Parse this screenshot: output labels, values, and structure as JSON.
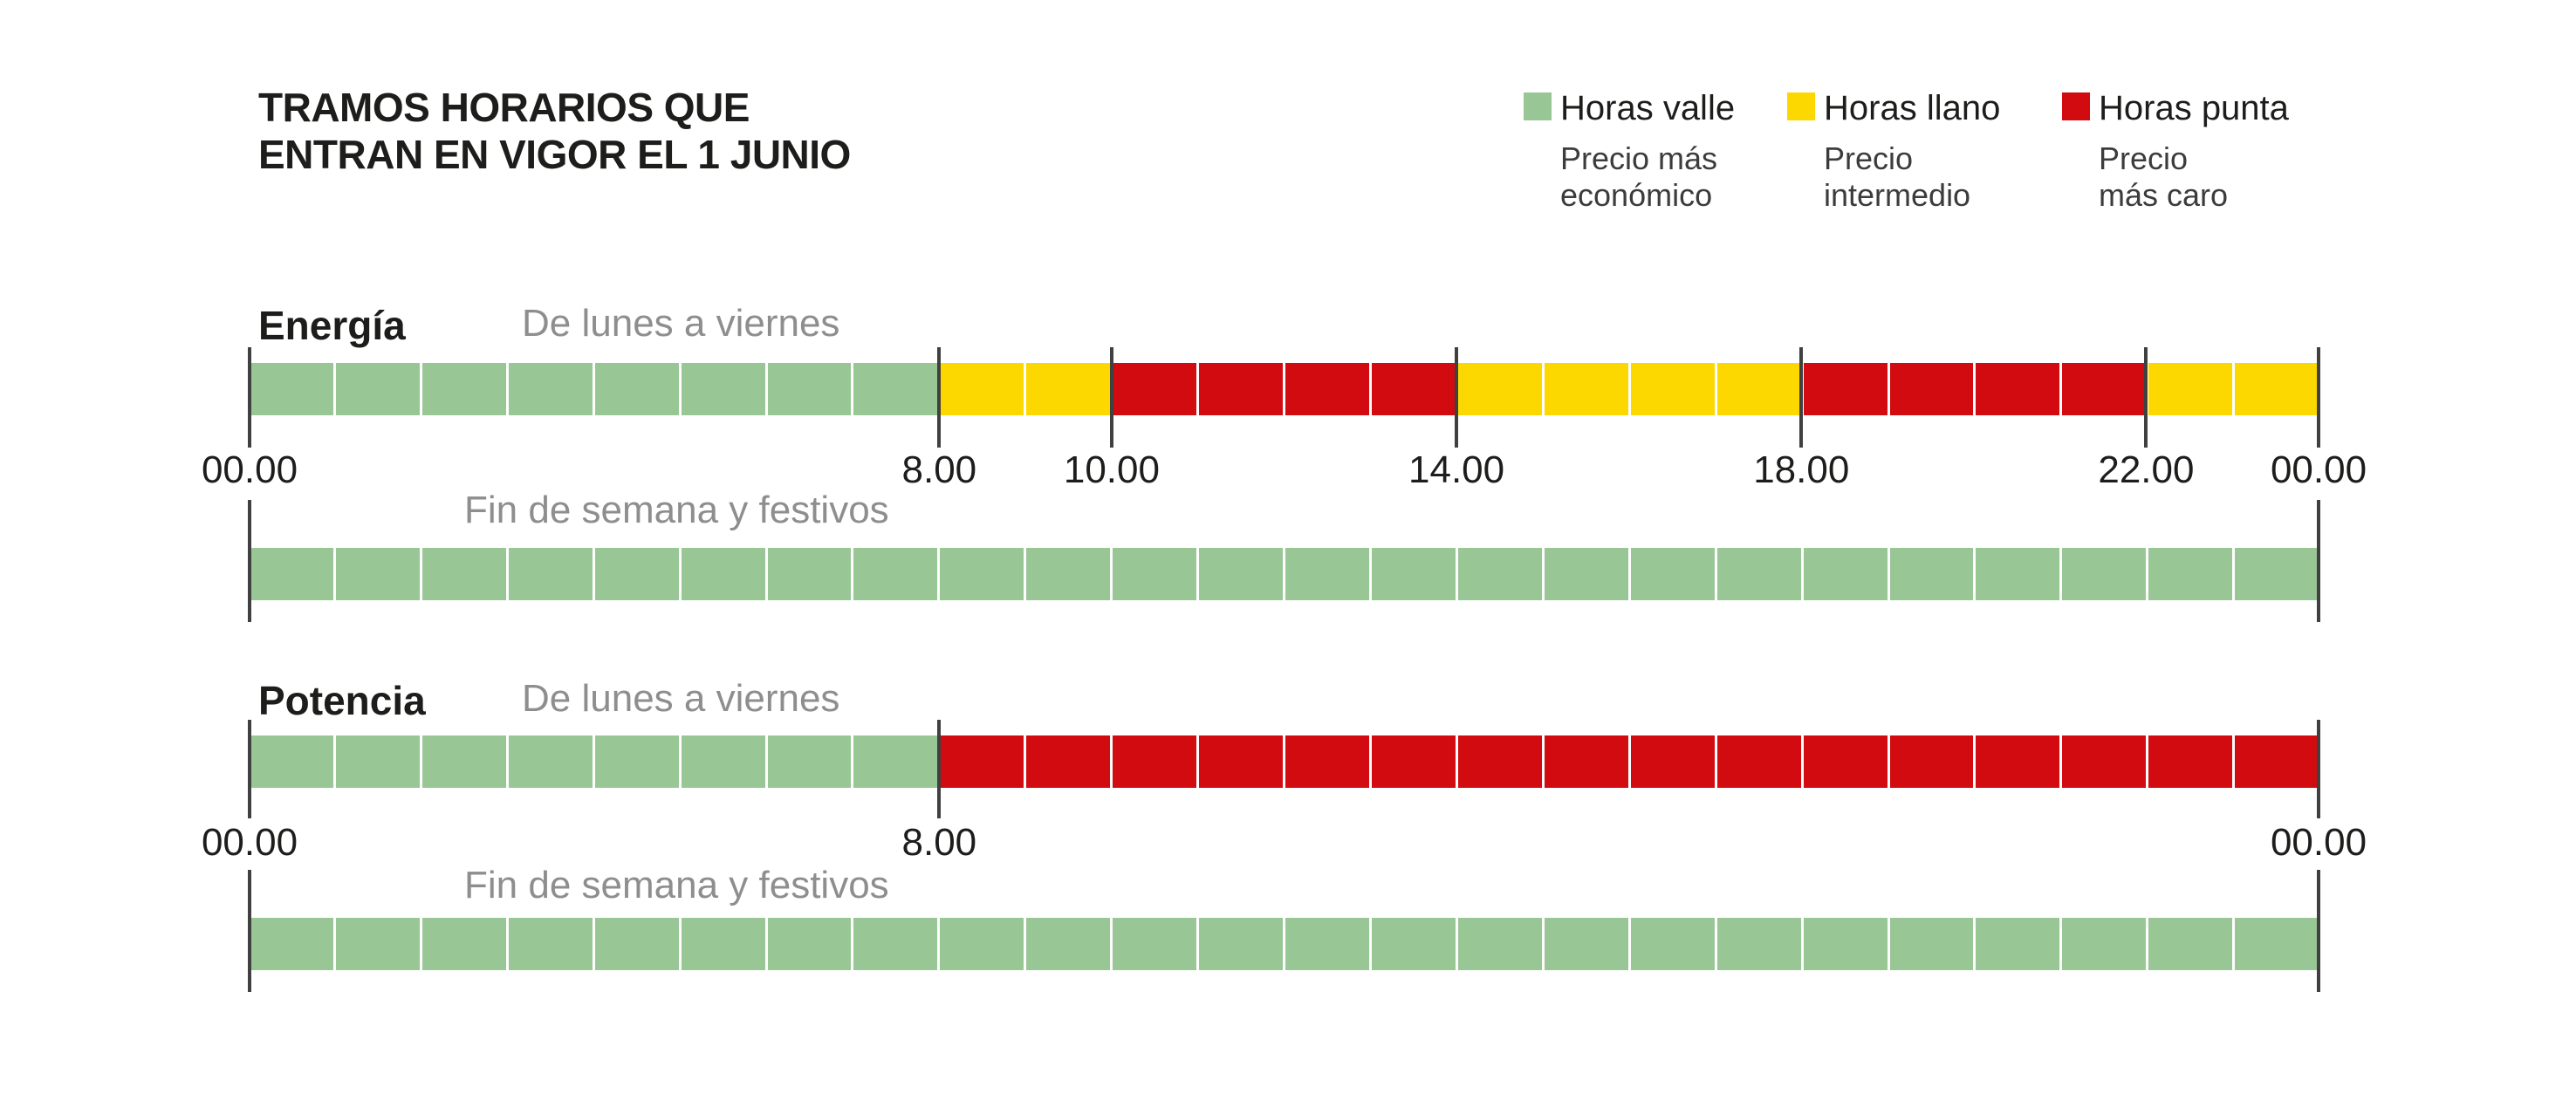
{
  "title": {
    "line1": "TRAMOS HORARIOS QUE",
    "line2": "ENTRAN EN VIGOR EL 1 JUNIO"
  },
  "colors": {
    "valle": "#98c795",
    "llano": "#fdd800",
    "punta": "#d20b10",
    "tick": "#404040",
    "text_dark": "#1d1d1b",
    "text_gray": "#8e8e8e",
    "sub_gray": "#3c3c3c"
  },
  "legend": [
    {
      "key": "valle",
      "label": "Horas valle",
      "sublines": [
        "Precio más",
        "económico"
      ]
    },
    {
      "key": "llano",
      "label": "Horas llano",
      "sublines": [
        "Precio",
        "intermedio"
      ]
    },
    {
      "key": "punta",
      "label": "Horas punta",
      "sublines": [
        "Precio",
        "más caro"
      ]
    }
  ],
  "chart_data": {
    "type": "heatmap",
    "subtype": "time-band-schedule",
    "hours_range": [
      0,
      24
    ],
    "hour_cells": 24,
    "band_names": {
      "valle": "Horas valle",
      "llano": "Horas llano",
      "punta": "Horas punta"
    },
    "sections": [
      {
        "name": "Energía",
        "rows": [
          {
            "label": "De lunes a viernes",
            "segments": [
              {
                "from": 0,
                "to": 8,
                "band": "valle"
              },
              {
                "from": 8,
                "to": 10,
                "band": "llano"
              },
              {
                "from": 10,
                "to": 14,
                "band": "punta"
              },
              {
                "from": 14,
                "to": 18,
                "band": "llano"
              },
              {
                "from": 18,
                "to": 22,
                "band": "punta"
              },
              {
                "from": 22,
                "to": 24,
                "band": "llano"
              }
            ],
            "ticks": [
              0,
              8,
              10,
              14,
              18,
              22,
              24
            ],
            "tick_labels": [
              "00.00",
              "8.00",
              "10.00",
              "14.00",
              "18.00",
              "22.00",
              "00.00"
            ]
          },
          {
            "label": "Fin de semana y festivos",
            "segments": [
              {
                "from": 0,
                "to": 24,
                "band": "valle"
              }
            ],
            "ticks": [
              0,
              24
            ],
            "tick_labels": []
          }
        ]
      },
      {
        "name": "Potencia",
        "rows": [
          {
            "label": "De lunes a viernes",
            "segments": [
              {
                "from": 0,
                "to": 8,
                "band": "valle"
              },
              {
                "from": 8,
                "to": 24,
                "band": "punta"
              }
            ],
            "ticks": [
              0,
              8,
              24
            ],
            "tick_labels": [
              "00.00",
              "8.00",
              "00.00"
            ]
          },
          {
            "label": "Fin de semana y festivos",
            "segments": [
              {
                "from": 0,
                "to": 24,
                "band": "valle"
              }
            ],
            "ticks": [
              0,
              24
            ],
            "tick_labels": []
          }
        ]
      }
    ]
  }
}
